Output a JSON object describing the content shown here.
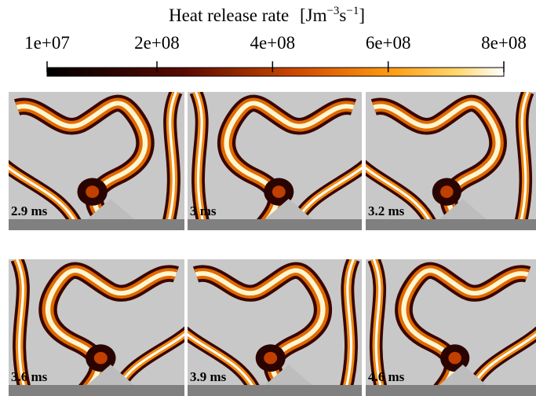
{
  "colorbar": {
    "title": "Heat release rate",
    "units": [
      "[Jm",
      "−3",
      "s",
      "−1",
      "]"
    ],
    "lim": [
      10000000,
      800000000
    ],
    "ticks": [
      {
        "value": 10000000,
        "label": "1e+07"
      },
      {
        "value": 200000000,
        "label": "2e+08"
      },
      {
        "value": 400000000,
        "label": "4e+08"
      },
      {
        "value": 600000000,
        "label": "6e+08"
      },
      {
        "value": 800000000,
        "label": "8e+08"
      }
    ]
  },
  "panels": [
    {
      "label": "2.9 ms"
    },
    {
      "label": "3 ms"
    },
    {
      "label": "3.2 ms"
    },
    {
      "label": "3.6 ms"
    },
    {
      "label": "3.9 ms"
    },
    {
      "label": "4.6 ms"
    }
  ]
}
